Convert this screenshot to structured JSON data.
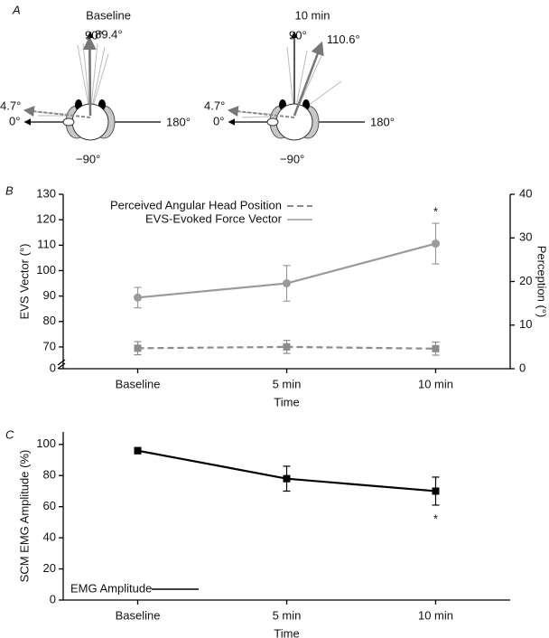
{
  "diagram": {
    "panel_label": "A",
    "views": [
      {
        "title": "Baseline",
        "axis_labels": [
          "90°",
          "0°",
          "180°",
          "−90°"
        ],
        "evs_vector": {
          "value": 89.4,
          "label": "89.4°"
        },
        "perception": {
          "value": 4.7,
          "label": "4.7°"
        }
      },
      {
        "title": "10 min",
        "axis_labels": [
          "90°",
          "0°",
          "180°",
          "−90°"
        ],
        "evs_vector": {
          "value": 110.6,
          "label": "110.6°"
        },
        "perception": {
          "value": 4.7,
          "label": "4.7°"
        }
      }
    ]
  },
  "chart_data": [
    {
      "type": "line",
      "panel_label": "B",
      "x_label": "Time",
      "y_label": "EVS Vector (°)",
      "y2_label": "Perception (°)",
      "categories": [
        "Baseline",
        "5 min",
        "10 min"
      ],
      "ylim": [
        0,
        130
      ],
      "ybreak": [
        0,
        65
      ],
      "yticks": [
        0,
        70,
        80,
        90,
        100,
        110,
        120,
        130
      ],
      "y2lim": [
        0,
        40
      ],
      "y2ticks": [
        0,
        10,
        20,
        30,
        40
      ],
      "legend": "upper left",
      "series": [
        {
          "name": "Perceived Angular Head Position",
          "color": "#8c8c8c",
          "dash": true,
          "marker": "square",
          "axis": "y2",
          "values": [
            4.7,
            5.0,
            4.6
          ],
          "errors": [
            1.5,
            1.5,
            1.5
          ]
        },
        {
          "name": "EVS-Evoked Force Vector",
          "color": "#9a9a9a",
          "dash": false,
          "marker": "circle",
          "values": [
            89.4,
            95,
            110.6
          ],
          "errors": [
            4,
            7,
            8
          ]
        }
      ],
      "annotations": [
        {
          "text": "*",
          "x": "10 min",
          "series": 1,
          "position": "above"
        }
      ]
    },
    {
      "type": "line",
      "panel_label": "C",
      "x_label": "Time",
      "y_label": "SCM EMG Amplitude (%)",
      "categories": [
        "Baseline",
        "5 min",
        "10 min"
      ],
      "ylim": [
        0,
        108
      ],
      "yticks": [
        0,
        20,
        40,
        60,
        80,
        100
      ],
      "legend": "lower left",
      "series": [
        {
          "name": "EMG Amplitude",
          "color": "#000000",
          "dash": false,
          "marker": "square",
          "values": [
            96,
            78,
            70
          ],
          "errors": [
            2,
            8,
            9
          ]
        }
      ],
      "annotations": [
        {
          "text": "*",
          "x": "10 min",
          "series": 0,
          "position": "below"
        }
      ]
    }
  ]
}
